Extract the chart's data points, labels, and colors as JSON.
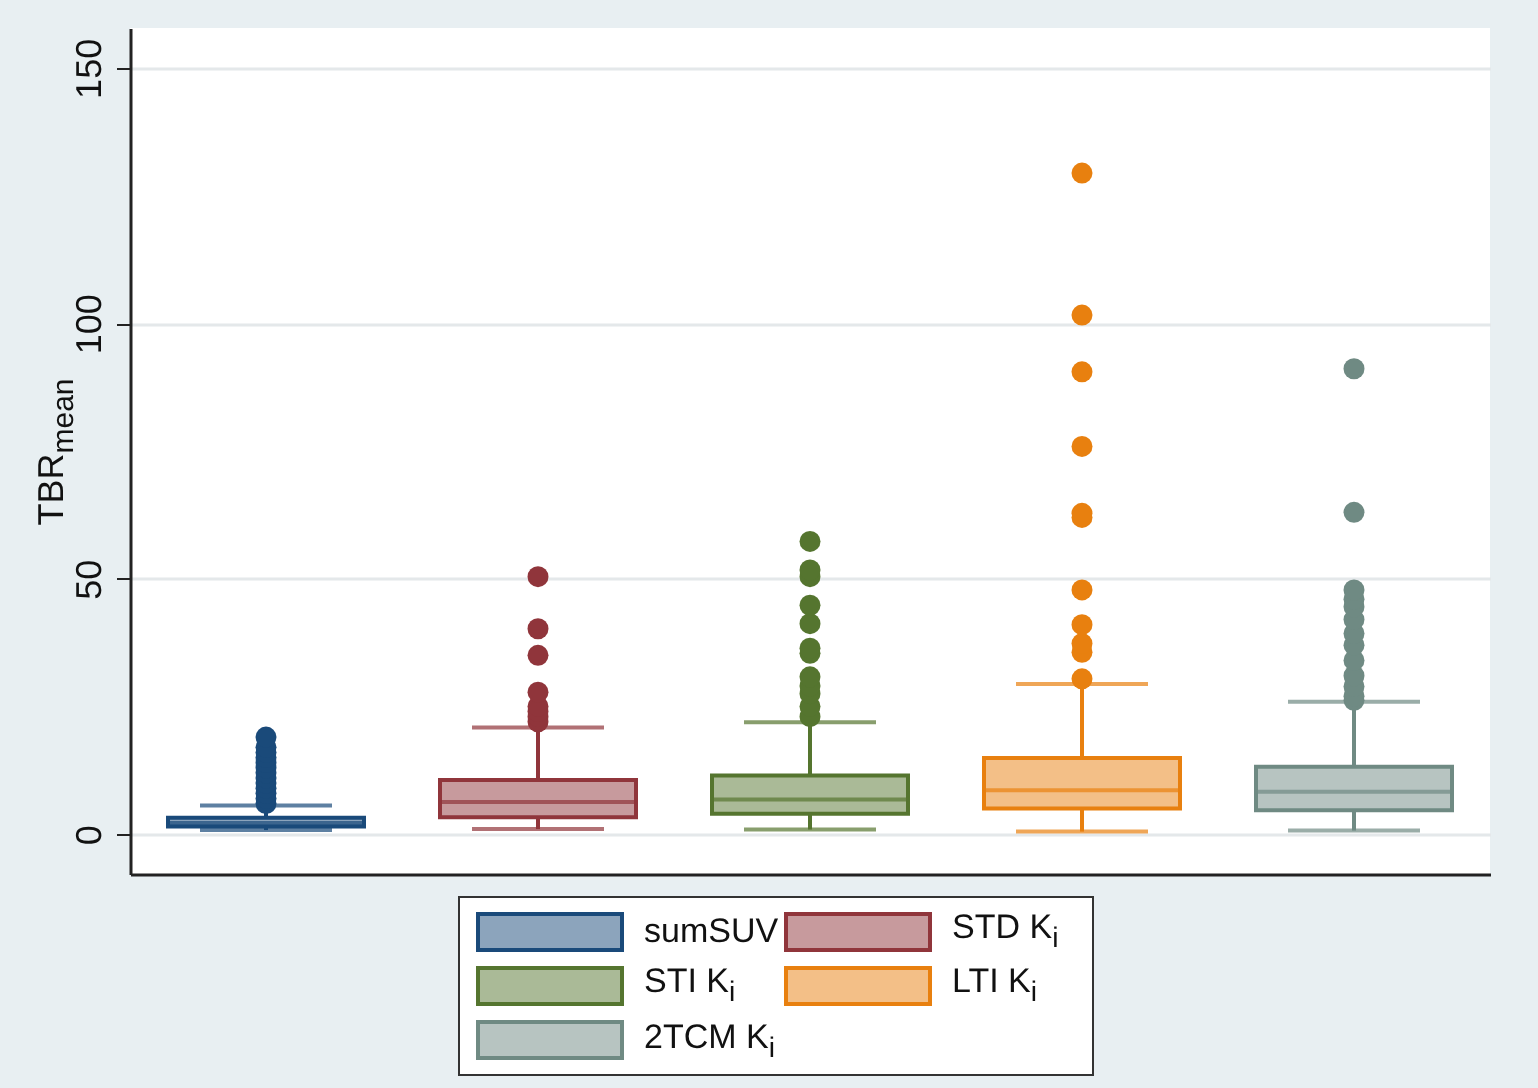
{
  "chart_data": {
    "type": "box",
    "ylabel": "TBR$_{mean}$",
    "categories": [
      null,
      null,
      null,
      null,
      null
    ],
    "ylim": [
      -7.8,
      157.8
    ],
    "yticks": [
      0,
      50,
      100,
      150
    ],
    "grid": "y",
    "legend": "bottom",
    "marker": "circle",
    "tick_labels": "y",
    "series": [
      {
        "name": "sumSUV",
        "color": "#1a4a7a",
        "boxes": [
          {
            "low": 0.8,
            "q1": 1.5,
            "median": 2.2,
            "q3": 3.2,
            "high": 5.6,
            "outliers": [
              6,
              7,
              8,
              9,
              10,
              11,
              12,
              13,
              14,
              15,
              16,
              17,
              19
            ]
          },
          null,
          null,
          null,
          null
        ]
      },
      {
        "name": "STD K$_{i}$",
        "color": "#90353b",
        "boxes": [
          null,
          {
            "low": 1.0,
            "q1": 3.3,
            "median": 6.3,
            "q3": 10.6,
            "high": 20.9,
            "outliers": [
              22,
              23,
              24,
              25,
              27.8,
              35,
              40.2,
              50.4
            ]
          },
          null,
          null,
          null
        ]
      },
      {
        "name": "STI K$_{i}$",
        "color": "#55752f",
        "boxes": [
          null,
          null,
          {
            "low": 0.9,
            "q1": 4.0,
            "median": 6.8,
            "q3": 11.5,
            "high": 21.9,
            "outliers": [
              23,
              25,
              27.5,
              29,
              30.8,
              35.4,
              36.4,
              41.2,
              44.8,
              50.4,
              51.7,
              57.3
            ]
          },
          null,
          null
        ]
      },
      {
        "name": "LTI K$_{i}$",
        "color": "#e8800f",
        "boxes": [
          null,
          null,
          null,
          {
            "low": 0.5,
            "q1": 5.0,
            "median": 8.6,
            "q3": 14.9,
            "high": 29.4,
            "outliers": [
              30.4,
              35.6,
              37.3,
              41,
              47.8,
              62,
              62.8,
              75.9,
              90.5,
              101.6,
              129.4
            ]
          },
          null
        ]
      },
      {
        "name": "2TCM K$_{i}$",
        "color": "#6f8a83",
        "boxes": [
          null,
          null,
          null,
          null,
          {
            "low": 0.7,
            "q1": 4.7,
            "median": 8.3,
            "q3": 13.2,
            "high": 25.9,
            "outliers": [
              26.2,
              27,
              28.9,
              31,
              34,
              37,
              39.3,
              42,
              44.5,
              46,
              47.8,
              63,
              91.1
            ]
          }
        ]
      }
    ]
  }
}
